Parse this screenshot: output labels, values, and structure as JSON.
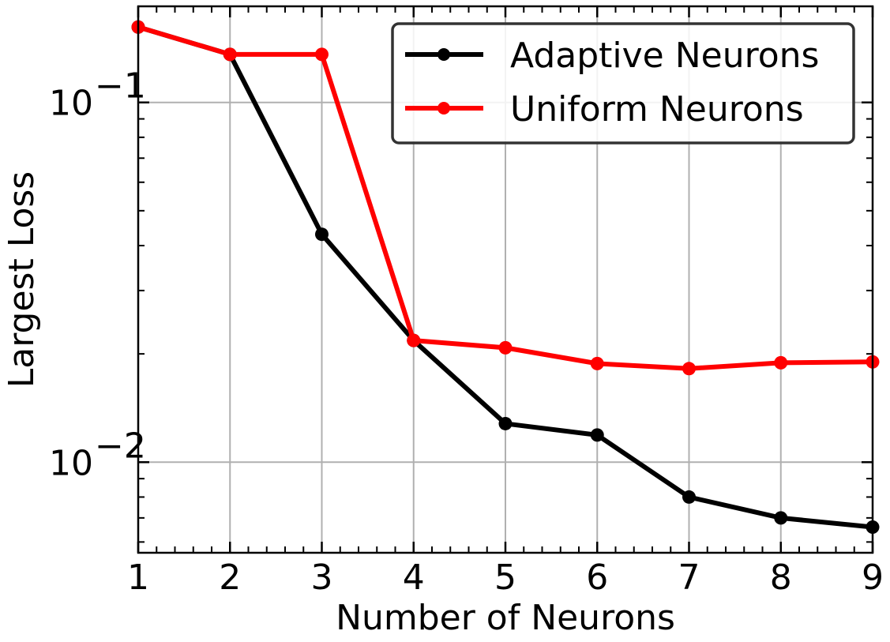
{
  "chart_data": {
    "type": "line",
    "xlabel": "Number of Neurons",
    "ylabel": "Largest Loss",
    "x": [
      1,
      2,
      3,
      4,
      5,
      6,
      7,
      8,
      9
    ],
    "xlim": [
      1,
      9
    ],
    "ylim": [
      0.0056,
      0.185
    ],
    "yscale": "log",
    "x_ticks": [
      "1",
      "2",
      "3",
      "4",
      "5",
      "6",
      "7",
      "8",
      "9"
    ],
    "y_ticks": [
      {
        "value": 0.1,
        "base": "10",
        "exp": "−1"
      },
      {
        "value": 0.01,
        "base": "10",
        "exp": "−2"
      }
    ],
    "grid": true,
    "legend_position": "top-right",
    "series": [
      {
        "name": "Adaptive Neurons",
        "color": "#000000",
        "values": [
          0.162,
          0.136,
          0.043,
          0.0218,
          0.0128,
          0.0119,
          0.008,
          0.007,
          0.0066
        ]
      },
      {
        "name": "Uniform Neurons",
        "color": "#ff0000",
        "values": [
          0.162,
          0.136,
          0.136,
          0.0218,
          0.0208,
          0.0188,
          0.0182,
          0.0189,
          0.019
        ]
      }
    ]
  }
}
